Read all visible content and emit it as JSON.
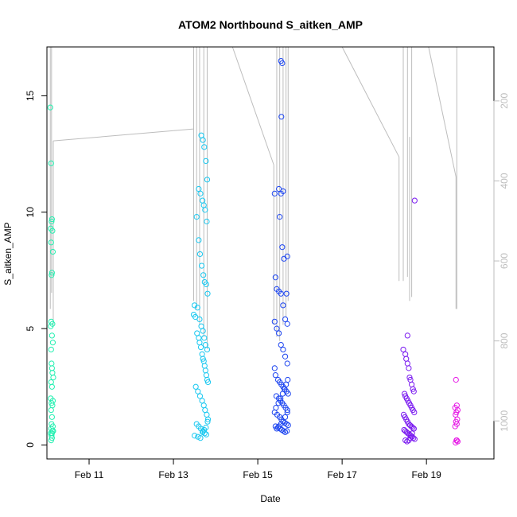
{
  "chart_data": {
    "type": "scatter",
    "title": "ATOM2 Northbound S_aitken_AMP",
    "xlabel": "Date",
    "ylabel": "S_aitken_AMP",
    "x_unit": "days (Feb 2017)",
    "xlim": [
      10.0,
      20.6
    ],
    "ylim": [
      -0.6,
      17.1
    ],
    "x_ticks": [
      {
        "value": 11,
        "label": "Feb 11"
      },
      {
        "value": 13,
        "label": "Feb 13"
      },
      {
        "value": 15,
        "label": "Feb 15"
      },
      {
        "value": 17,
        "label": "Feb 17"
      },
      {
        "value": 19,
        "label": "Feb 19"
      }
    ],
    "y_ticks": [
      0,
      5,
      10,
      15
    ],
    "y2_axis": {
      "color": "#bdbdbd",
      "ticks": [
        200,
        400,
        600,
        800,
        1000
      ],
      "lim": [
        65,
        1095
      ],
      "inverted": true
    },
    "grid": false,
    "color_scale": "time (cyan-green to magenta)",
    "series": [
      {
        "color": "#22f0b0",
        "x": [
          10.08,
          10.1,
          10.12,
          10.11,
          10.09,
          10.13,
          10.1,
          10.14,
          10.12,
          10.11,
          10.1,
          10.13,
          10.09,
          10.12,
          10.14,
          10.1,
          10.11,
          10.12,
          10.13,
          10.15,
          10.1,
          10.12,
          10.09,
          10.14,
          10.11,
          10.13,
          10.1,
          10.12,
          10.11,
          10.14,
          10.1,
          10.13,
          10.12,
          10.09,
          10.11,
          10.15,
          10.12,
          10.1
        ],
        "y": [
          14.5,
          12.1,
          9.7,
          9.6,
          9.3,
          9.2,
          8.7,
          8.3,
          7.4,
          7.3,
          5.3,
          5.2,
          5.1,
          4.7,
          4.4,
          4.1,
          3.5,
          3.3,
          3.1,
          2.9,
          2.7,
          2.5,
          2.0,
          1.9,
          1.8,
          1.7,
          1.5,
          1.2,
          0.9,
          0.8,
          0.7,
          0.6,
          0.5,
          0.5,
          0.4,
          0.6,
          0.3,
          0.2
        ]
      },
      {
        "color": "#1ac8f0",
        "x": [
          13.48,
          13.52,
          13.56,
          13.6,
          13.62,
          13.65,
          13.68,
          13.7,
          13.72,
          13.74,
          13.76,
          13.78,
          13.8,
          13.82,
          13.66,
          13.7,
          13.73,
          13.77,
          13.8,
          13.6,
          13.64,
          13.69,
          13.72,
          13.75,
          13.79,
          13.55,
          13.6,
          13.63,
          13.67,
          13.71,
          13.74,
          13.78,
          13.81,
          13.5,
          13.57,
          13.62,
          13.66,
          13.7,
          13.73,
          13.76,
          13.8,
          13.53,
          13.58,
          13.63,
          13.68,
          13.72,
          13.75,
          13.79,
          13.82,
          13.55,
          13.6,
          13.65,
          13.7,
          13.74,
          13.78,
          13.5,
          13.58,
          13.64,
          13.69,
          13.73,
          13.77,
          13.81
        ],
        "y": [
          5.6,
          5.5,
          4.8,
          4.6,
          4.4,
          4.2,
          3.9,
          3.7,
          3.6,
          3.4,
          3.2,
          3.0,
          2.8,
          2.7,
          13.3,
          13.1,
          12.8,
          12.2,
          11.4,
          11.0,
          10.8,
          10.5,
          10.3,
          10.1,
          9.6,
          9.8,
          8.8,
          8.2,
          7.7,
          7.3,
          7.0,
          6.9,
          6.5,
          6.0,
          5.9,
          5.4,
          5.1,
          4.9,
          4.6,
          4.3,
          4.1,
          2.5,
          2.3,
          2.1,
          1.9,
          1.7,
          1.5,
          1.3,
          1.1,
          0.9,
          0.8,
          0.7,
          0.6,
          0.5,
          0.45,
          0.4,
          0.35,
          0.3,
          0.55,
          0.65,
          0.75,
          1.0
        ]
      },
      {
        "color": "#1e46f0",
        "x": [
          15.55,
          15.58,
          15.56,
          15.5,
          15.55,
          15.6,
          15.4,
          15.52,
          15.58,
          15.62,
          15.7,
          15.68,
          15.42,
          15.45,
          15.5,
          15.55,
          15.6,
          15.65,
          15.7,
          15.4,
          15.45,
          15.5,
          15.55,
          15.6,
          15.65,
          15.7,
          15.4,
          15.42,
          15.48,
          15.52,
          15.56,
          15.6,
          15.64,
          15.68,
          15.72,
          15.44,
          15.5,
          15.54,
          15.58,
          15.62,
          15.66,
          15.7,
          15.4,
          15.46,
          15.52,
          15.56,
          15.6,
          15.64,
          15.68,
          15.72,
          15.42,
          15.48,
          15.53,
          15.57,
          15.61,
          15.65,
          15.69,
          15.45,
          15.5,
          15.55,
          15.6,
          15.65,
          15.7,
          15.43,
          15.49,
          15.54,
          15.59,
          15.63,
          15.67,
          15.71
        ],
        "y": [
          16.5,
          16.4,
          14.1,
          11.0,
          10.8,
          10.9,
          10.8,
          9.8,
          8.5,
          8.0,
          8.1,
          6.5,
          7.2,
          6.7,
          6.6,
          6.5,
          6.0,
          5.4,
          5.2,
          5.3,
          5.0,
          4.8,
          4.3,
          4.1,
          3.8,
          3.5,
          3.3,
          3.0,
          2.8,
          2.7,
          2.6,
          2.5,
          2.4,
          2.3,
          2.2,
          2.1,
          2.0,
          1.9,
          1.8,
          1.7,
          1.6,
          1.5,
          1.4,
          1.3,
          1.2,
          1.1,
          1.0,
          0.95,
          0.9,
          0.85,
          0.8,
          0.75,
          0.7,
          0.65,
          0.6,
          0.55,
          0.6,
          0.7,
          0.8,
          0.9,
          1.0,
          1.2,
          1.4,
          1.6,
          1.8,
          2.0,
          2.2,
          2.4,
          2.6,
          2.8
        ]
      },
      {
        "color": "#7a1af0",
        "x": [
          18.72,
          18.55,
          18.45,
          18.5,
          18.52,
          18.55,
          18.58,
          18.6,
          18.62,
          18.65,
          18.68,
          18.7,
          18.48,
          18.5,
          18.53,
          18.56,
          18.59,
          18.62,
          18.65,
          18.68,
          18.71,
          18.46,
          18.49,
          18.52,
          18.55,
          18.58,
          18.61,
          18.64,
          18.67,
          18.7,
          18.47,
          18.5,
          18.53,
          18.56,
          18.6,
          18.63,
          18.66,
          18.69,
          18.72,
          18.5,
          18.54,
          18.58,
          18.62,
          18.66,
          18.7
        ],
        "y": [
          10.5,
          4.7,
          4.1,
          3.9,
          3.7,
          3.5,
          3.3,
          2.9,
          2.8,
          2.6,
          2.4,
          2.3,
          2.2,
          2.1,
          2.0,
          1.9,
          1.8,
          1.7,
          1.6,
          1.5,
          1.4,
          1.3,
          1.2,
          1.1,
          1.0,
          0.9,
          0.85,
          0.8,
          0.75,
          0.7,
          0.65,
          0.6,
          0.55,
          0.5,
          0.45,
          0.4,
          0.35,
          0.3,
          0.25,
          0.2,
          0.15,
          0.2,
          0.3,
          0.5,
          0.7
        ]
      },
      {
        "color": "#e61ae6",
        "x": [
          19.7,
          19.72,
          19.68,
          19.74,
          19.71,
          19.69,
          19.73,
          19.7,
          19.72,
          19.68,
          19.71,
          19.74,
          19.69,
          19.72
        ],
        "y": [
          2.8,
          1.7,
          1.6,
          1.5,
          1.4,
          1.3,
          1.1,
          1.0,
          0.9,
          0.8,
          0.2,
          0.15,
          0.1,
          0.2
        ]
      }
    ],
    "profile_lines": {
      "color": "#bdbdbd",
      "description_axis": "right axis values",
      "segments": [
        [
          [
            10.08,
            65
          ],
          [
            10.08,
            720
          ]
        ],
        [
          [
            10.11,
            65
          ],
          [
            10.11,
            680
          ]
        ],
        [
          [
            10.15,
            300
          ],
          [
            10.15,
            760
          ]
        ],
        [
          [
            10.15,
            300
          ],
          [
            13.48,
            270
          ]
        ],
        [
          [
            13.48,
            65
          ],
          [
            13.48,
            700
          ]
        ],
        [
          [
            13.55,
            65
          ],
          [
            13.55,
            720
          ]
        ],
        [
          [
            13.62,
            65
          ],
          [
            13.62,
            760
          ]
        ],
        [
          [
            13.72,
            65
          ],
          [
            13.72,
            790
          ]
        ],
        [
          [
            13.8,
            65
          ],
          [
            13.8,
            820
          ]
        ],
        [
          [
            14.4,
            65
          ],
          [
            15.38,
            360
          ]
        ],
        [
          [
            15.38,
            360
          ],
          [
            15.38,
            760
          ]
        ],
        [
          [
            15.45,
            65
          ],
          [
            15.45,
            790
          ]
        ],
        [
          [
            15.52,
            65
          ],
          [
            15.52,
            800
          ]
        ],
        [
          [
            15.6,
            65
          ],
          [
            15.6,
            760
          ]
        ],
        [
          [
            15.67,
            65
          ],
          [
            15.67,
            740
          ]
        ],
        [
          [
            15.72,
            65
          ],
          [
            15.72,
            700
          ]
        ],
        [
          [
            17.0,
            65
          ],
          [
            18.35,
            340
          ]
        ],
        [
          [
            18.35,
            340
          ],
          [
            18.35,
            650
          ]
        ],
        [
          [
            18.45,
            65
          ],
          [
            18.45,
            650
          ]
        ],
        [
          [
            18.55,
            65
          ],
          [
            18.55,
            640
          ]
        ],
        [
          [
            18.6,
            290
          ],
          [
            18.6,
            700
          ]
        ],
        [
          [
            18.65,
            65
          ],
          [
            18.65,
            690
          ]
        ],
        [
          [
            19.05,
            65
          ],
          [
            19.7,
            390
          ]
        ],
        [
          [
            19.7,
            390
          ],
          [
            19.7,
            720
          ]
        ],
        [
          [
            19.72,
            65
          ],
          [
            19.72,
            720
          ]
        ]
      ]
    }
  }
}
